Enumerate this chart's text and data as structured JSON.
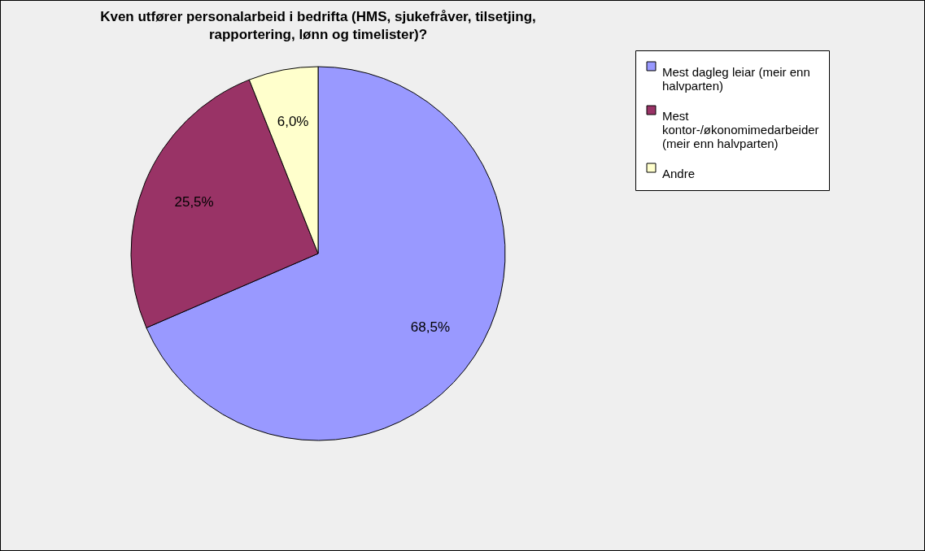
{
  "chart_data": {
    "type": "pie",
    "title": "Kven utfører personalarbeid i bedrifta (HMS, sjukefråver, tilsetjing, rapportering, lønn og timelister)?",
    "categories": [
      "Mest dagleg leiar (meir enn halvparten)",
      "Mest kontor-/økonomimedarbeider (meir enn halvparten)",
      "Andre"
    ],
    "values": [
      68.5,
      25.5,
      6.0
    ],
    "colors": [
      "#9999ff",
      "#993366",
      "#ffffcc"
    ],
    "value_labels": [
      "68,5%",
      "25,5%",
      "6,0%"
    ],
    "legend": "right"
  }
}
